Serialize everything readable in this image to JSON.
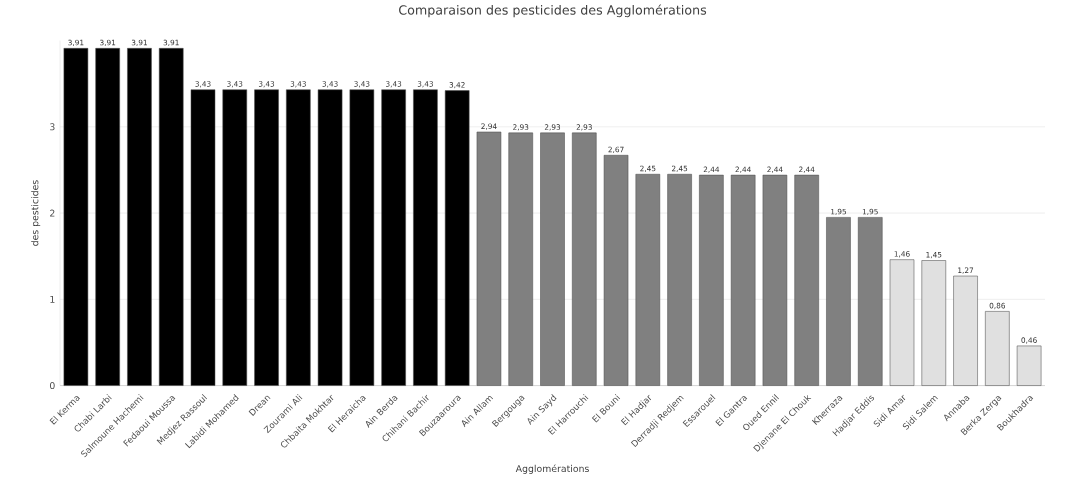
{
  "chart_data": {
    "type": "bar",
    "title": "Comparaison des pesticides des Agglomérations",
    "xlabel": "Agglomérations",
    "ylabel": "des pesticides",
    "categories": [
      "El Kerma",
      "Chabi Larbi",
      "Salmoune Hachemi",
      "Fedaoui Moussa",
      "Medjez Rassoul",
      "Labidi Mohamed",
      "Drean",
      "Zourami Ali",
      "Chbaita Mokhtar",
      "El Heraicha",
      "Ain Berda",
      "Chihani Bachir",
      "Bouzaaroura",
      "Ain Allam",
      "Bergouga",
      "Ain Sayd",
      "El Harrouchi",
      "El Bouni",
      "El Hadjar",
      "Derradji Redjem",
      "Essarouel",
      "El Gantra",
      "Oued Ennil",
      "Djenane El Chouk",
      "Kherraza",
      "Hadjar Eddis",
      "Sidi Amar",
      "Sidi Salem",
      "Annaba",
      "Berka Zerga",
      "Boukhadra"
    ],
    "values": [
      3.91,
      3.91,
      3.91,
      3.91,
      3.43,
      3.43,
      3.43,
      3.43,
      3.43,
      3.43,
      3.43,
      3.43,
      3.42,
      2.94,
      2.93,
      2.93,
      2.93,
      2.67,
      2.45,
      2.45,
      2.44,
      2.44,
      2.44,
      2.44,
      1.95,
      1.95,
      1.46,
      1.45,
      1.27,
      0.86,
      0.46
    ],
    "value_labels": [
      "3,91",
      "3,91",
      "3,91",
      "3,91",
      "3,43",
      "3,43",
      "3,43",
      "3,43",
      "3,43",
      "3,43",
      "3,43",
      "3,43",
      "3,42",
      "2,94",
      "2,93",
      "2,93",
      "2,93",
      "2,67",
      "2,45",
      "2,45",
      "2,44",
      "2,44",
      "2,44",
      "2,44",
      "1,95",
      "1,95",
      "1,46",
      "1,45",
      "1,27",
      "0,86",
      "0,46"
    ],
    "colors": [
      "#000000",
      "#000000",
      "#000000",
      "#000000",
      "#000000",
      "#000000",
      "#000000",
      "#000000",
      "#000000",
      "#000000",
      "#000000",
      "#000000",
      "#000000",
      "#808080",
      "#808080",
      "#808080",
      "#808080",
      "#808080",
      "#808080",
      "#808080",
      "#808080",
      "#808080",
      "#808080",
      "#808080",
      "#808080",
      "#808080",
      "#e0e0e0",
      "#e0e0e0",
      "#e0e0e0",
      "#e0e0e0",
      "#e0e0e0"
    ],
    "ylim": [
      0,
      4
    ],
    "yticks": [
      0,
      1,
      2,
      3
    ],
    "grid": "y"
  }
}
